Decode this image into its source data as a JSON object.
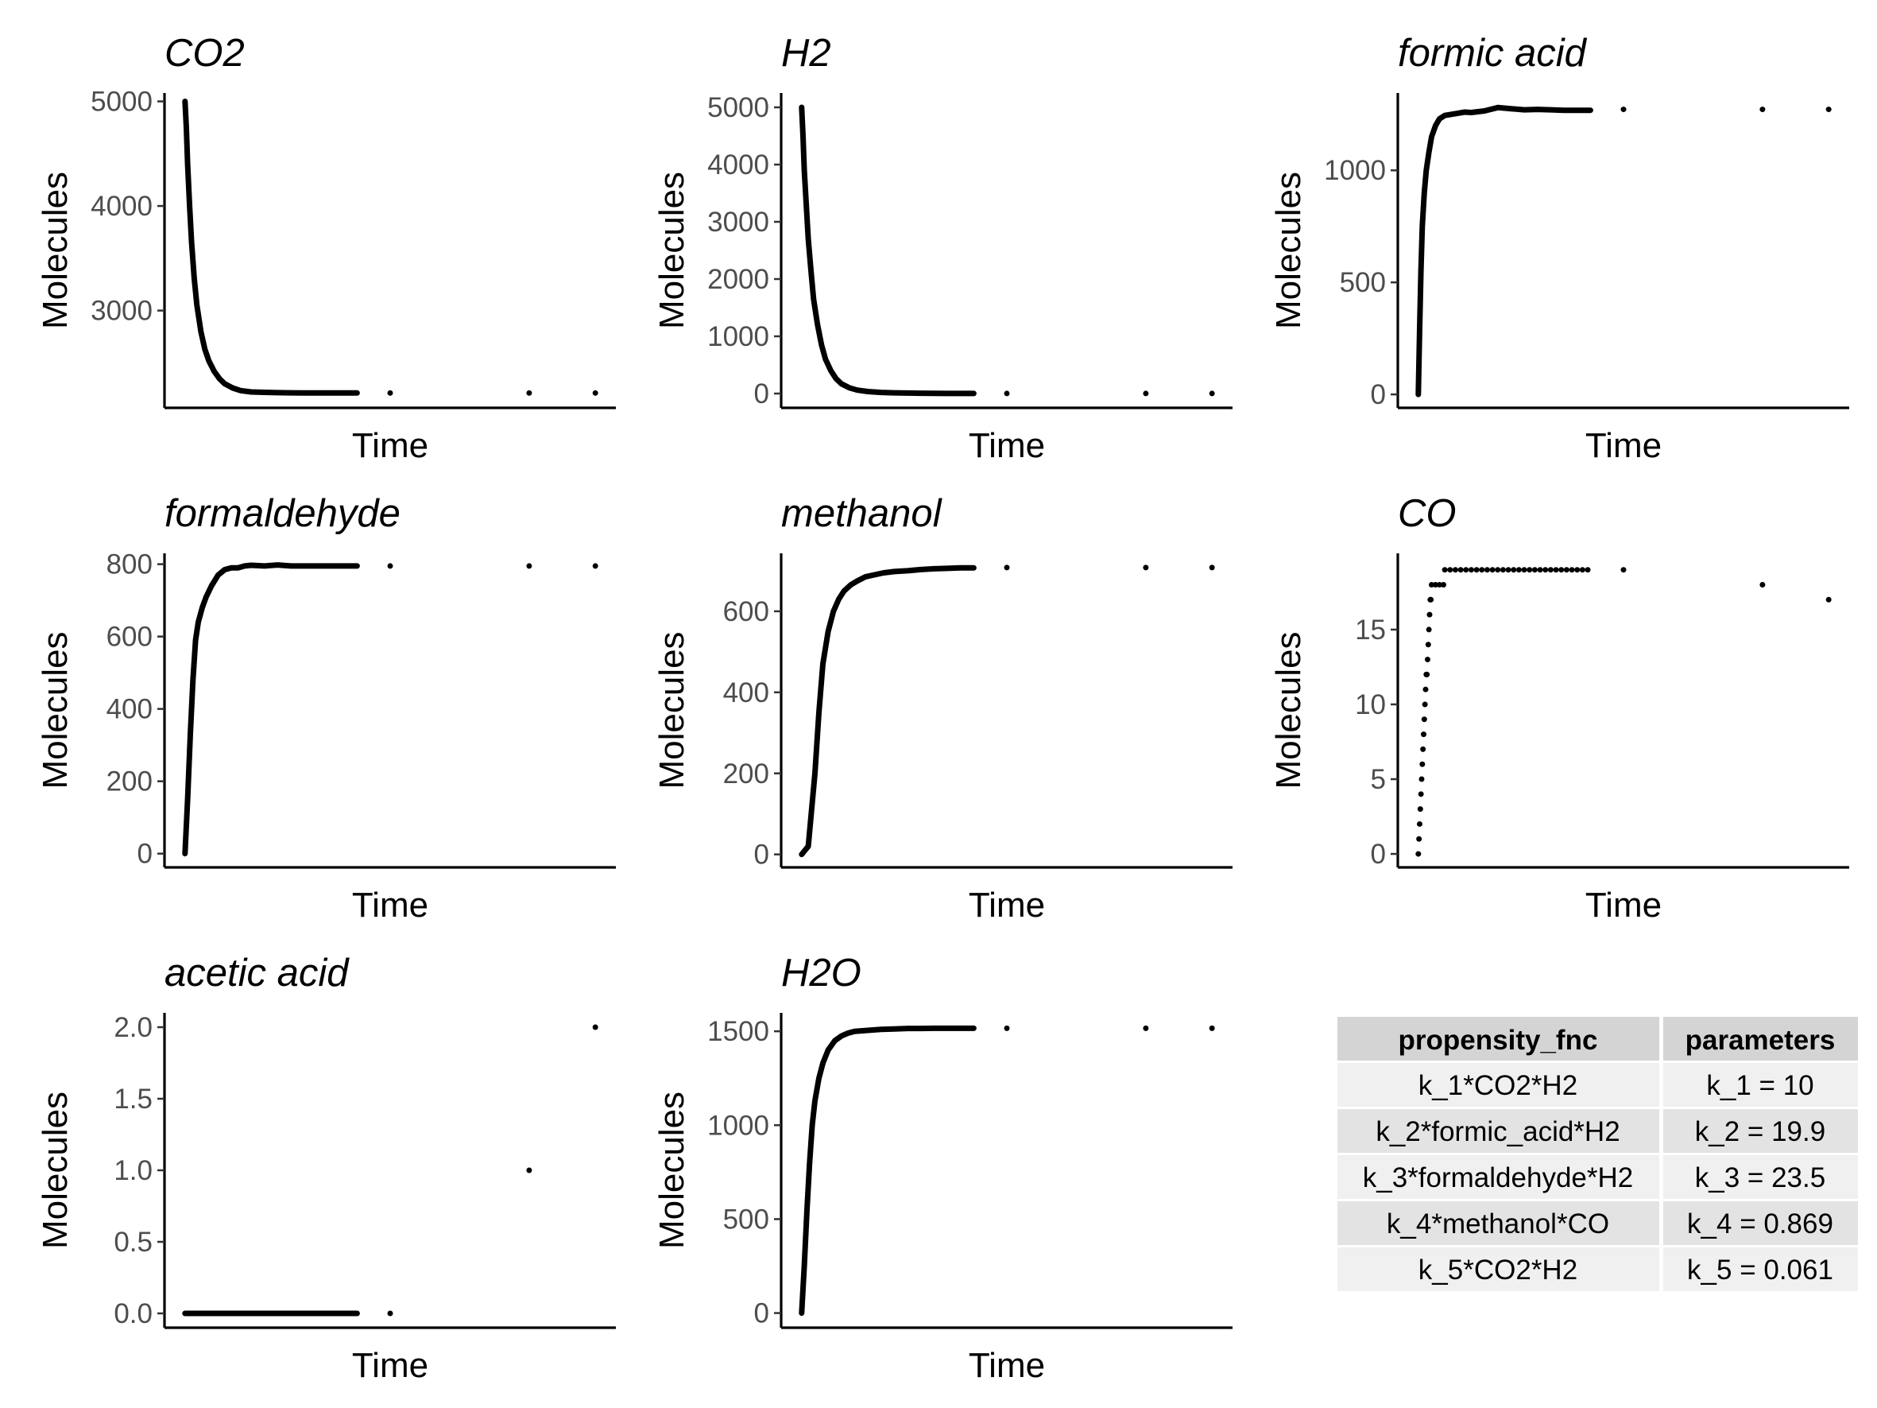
{
  "chart_data": [
    {
      "type": "line",
      "title": "CO2",
      "xlabel": "Time",
      "ylabel": "Molecules",
      "yticks": [
        3000,
        4000,
        5000
      ],
      "ylim": [
        2070,
        5080
      ],
      "x": [
        0,
        0.1,
        0.2,
        0.35,
        0.5,
        0.7,
        0.9,
        1.2,
        1.5,
        1.8,
        2.2,
        2.6,
        3.0,
        3.6,
        4.2,
        5.0,
        6.0,
        7.0,
        8.0,
        9.0,
        10.0,
        11.0,
        12.0,
        13.0,
        15.5,
        26.0,
        31.0
      ],
      "y": [
        5000,
        4750,
        4400,
        4000,
        3650,
        3300,
        3050,
        2800,
        2630,
        2520,
        2420,
        2350,
        2300,
        2260,
        2235,
        2222,
        2218,
        2215,
        2214,
        2213,
        2212,
        2212,
        2212,
        2212,
        2212,
        2212,
        2212
      ]
    },
    {
      "type": "line",
      "title": "H2",
      "xlabel": "Time",
      "ylabel": "Molecules",
      "yticks": [
        0,
        1000,
        2000,
        3000,
        4000,
        5000
      ],
      "ylim": [
        -250,
        5250
      ],
      "x": [
        0,
        0.1,
        0.2,
        0.35,
        0.5,
        0.7,
        0.9,
        1.2,
        1.5,
        1.8,
        2.2,
        2.6,
        3.0,
        3.6,
        4.2,
        5.0,
        6.0,
        7.0,
        8.0,
        9.0,
        10.0,
        11.0,
        12.0,
        13.0,
        15.5,
        26.0,
        31.0
      ],
      "y": [
        5000,
        4500,
        3900,
        3300,
        2700,
        2150,
        1650,
        1200,
        850,
        600,
        400,
        260,
        170,
        100,
        60,
        35,
        20,
        12,
        8,
        5,
        3,
        2,
        1,
        1,
        1,
        1,
        1
      ]
    },
    {
      "type": "line",
      "title": "formic acid",
      "xlabel": "Time",
      "ylabel": "Molecules",
      "yticks": [
        0,
        500,
        1000
      ],
      "ylim": [
        -60,
        1345
      ],
      "x": [
        0,
        0.1,
        0.2,
        0.3,
        0.45,
        0.6,
        0.8,
        1.0,
        1.3,
        1.6,
        2.0,
        2.5,
        3.0,
        3.5,
        4.0,
        5.0,
        6.0,
        7.0,
        8.0,
        9.0,
        10.0,
        11.0,
        12.0,
        13.0,
        15.5,
        26.0,
        31.0
      ],
      "y": [
        0,
        300,
        550,
        750,
        900,
        1000,
        1080,
        1150,
        1200,
        1230,
        1245,
        1250,
        1255,
        1260,
        1258,
        1265,
        1280,
        1275,
        1270,
        1272,
        1270,
        1268,
        1268,
        1268,
        1272,
        1272,
        1272
      ]
    },
    {
      "type": "line",
      "title": "formaldehyde",
      "xlabel": "Time",
      "ylabel": "Molecules",
      "yticks": [
        0,
        200,
        400,
        600,
        800
      ],
      "ylim": [
        -38,
        830
      ],
      "x": [
        0,
        0.2,
        0.4,
        0.6,
        0.8,
        1.0,
        1.3,
        1.6,
        2.0,
        2.5,
        3.0,
        3.5,
        4.0,
        4.5,
        5.0,
        6.0,
        7.0,
        8.0,
        9.0,
        10.0,
        11.0,
        12.0,
        13.0,
        15.5,
        26.0,
        31.0
      ],
      "y": [
        0,
        150,
        330,
        480,
        590,
        640,
        680,
        710,
        740,
        770,
        785,
        790,
        790,
        795,
        797,
        795,
        798,
        795,
        795,
        795,
        795,
        795,
        795,
        795,
        795,
        795
      ]
    },
    {
      "type": "line",
      "title": "methanol",
      "xlabel": "Time",
      "ylabel": "Molecules",
      "yticks": [
        0,
        200,
        400,
        600
      ],
      "ylim": [
        -32,
        743
      ],
      "x": [
        0,
        0.5,
        1.0,
        1.3,
        1.6,
        2.0,
        2.4,
        2.8,
        3.2,
        3.7,
        4.2,
        4.8,
        5.5,
        6.2,
        7.0,
        8.0,
        9.0,
        10.0,
        11.0,
        12.0,
        13.0,
        15.5,
        26.0,
        31.0
      ],
      "y": [
        0,
        20,
        200,
        350,
        470,
        550,
        600,
        630,
        650,
        665,
        675,
        685,
        690,
        695,
        698,
        700,
        703,
        705,
        706,
        707,
        707,
        708,
        708,
        708
      ]
    },
    {
      "type": "scatter",
      "title": "CO",
      "xlabel": "Time",
      "ylabel": "Molecules",
      "yticks": [
        0,
        5,
        10,
        15
      ],
      "ylim": [
        -0.9,
        20.1
      ],
      "x": [
        0,
        0.05,
        0.1,
        0.15,
        0.2,
        0.25,
        0.3,
        0.35,
        0.4,
        0.45,
        0.5,
        0.55,
        0.6,
        0.65,
        0.7,
        0.75,
        0.8,
        0.85,
        0.9,
        0.95,
        1.0,
        1.3,
        1.6,
        1.9,
        2.0,
        2.4,
        2.8,
        3.2,
        3.6,
        4.0,
        4.4,
        4.8,
        5.2,
        5.6,
        6.0,
        6.4,
        6.8,
        7.2,
        7.6,
        8.0,
        8.4,
        8.8,
        9.2,
        9.6,
        10.0,
        10.4,
        10.8,
        11.2,
        11.6,
        12.0,
        12.4,
        12.8,
        15.5,
        26.0,
        31.0
      ],
      "y": [
        0,
        1,
        2,
        3,
        4,
        5,
        6,
        7,
        8,
        9,
        10,
        11,
        12,
        12,
        13,
        14,
        15,
        16,
        17,
        17,
        18,
        18,
        18,
        18,
        19,
        19,
        19,
        19,
        19,
        19,
        19,
        19,
        19,
        19,
        19,
        19,
        19,
        19,
        19,
        19,
        19,
        19,
        19,
        19,
        19,
        19,
        19,
        19,
        19,
        19,
        19,
        19,
        19,
        18,
        17
      ]
    },
    {
      "type": "line",
      "title": "acetic acid",
      "xlabel": "Time",
      "ylabel": "Molecules",
      "yticks": [
        0.0,
        0.5,
        1.0,
        1.5,
        2.0
      ],
      "ylim": [
        -0.1,
        2.1
      ],
      "yformat": "1dp",
      "x": [
        0,
        1,
        2,
        3,
        4,
        5,
        6,
        7,
        8,
        9,
        10,
        11,
        12,
        13,
        15.5,
        26.0,
        31.0
      ],
      "y": [
        0,
        0,
        0,
        0,
        0,
        0,
        0,
        0,
        0,
        0,
        0,
        0,
        0,
        0,
        0,
        1,
        2
      ]
    },
    {
      "type": "line",
      "title": "H2O",
      "xlabel": "Time",
      "ylabel": "Molecules",
      "yticks": [
        0,
        500,
        1000,
        1500
      ],
      "ylim": [
        -78,
        1598
      ],
      "x": [
        0,
        0.2,
        0.4,
        0.6,
        0.8,
        1.0,
        1.3,
        1.6,
        2.0,
        2.5,
        3.0,
        3.5,
        4.0,
        5.0,
        6.0,
        7.0,
        8.0,
        9.0,
        10.0,
        11.0,
        12.0,
        13.0,
        15.5,
        26.0,
        31.0
      ],
      "y": [
        0,
        250,
        550,
        800,
        1000,
        1130,
        1250,
        1330,
        1400,
        1450,
        1475,
        1490,
        1500,
        1505,
        1510,
        1512,
        1515,
        1515,
        1516,
        1516,
        1516,
        1516,
        1516,
        1516,
        1516
      ]
    }
  ],
  "xlim": [
    -1.55,
    32.55
  ],
  "table": {
    "headers": [
      "propensity_fnc",
      "parameters"
    ],
    "rows": [
      [
        "k_1*CO2*H2",
        "k_1 = 10"
      ],
      [
        "k_2*formic_acid*H2",
        "k_2 = 19.9"
      ],
      [
        "k_3*formaldehyde*H2",
        "k_3 = 23.5"
      ],
      [
        "k_4*methanol*CO",
        "k_4 = 0.869"
      ],
      [
        "k_5*CO2*H2",
        "k_5 = 0.061"
      ]
    ]
  },
  "colors": {
    "line": "#000000",
    "tick_label": "#4d4d4d",
    "table_header_bg": "#d4d4d4",
    "table_row_bg_odd": "#f0f0f0",
    "table_row_bg_even": "#e3e3e3"
  }
}
